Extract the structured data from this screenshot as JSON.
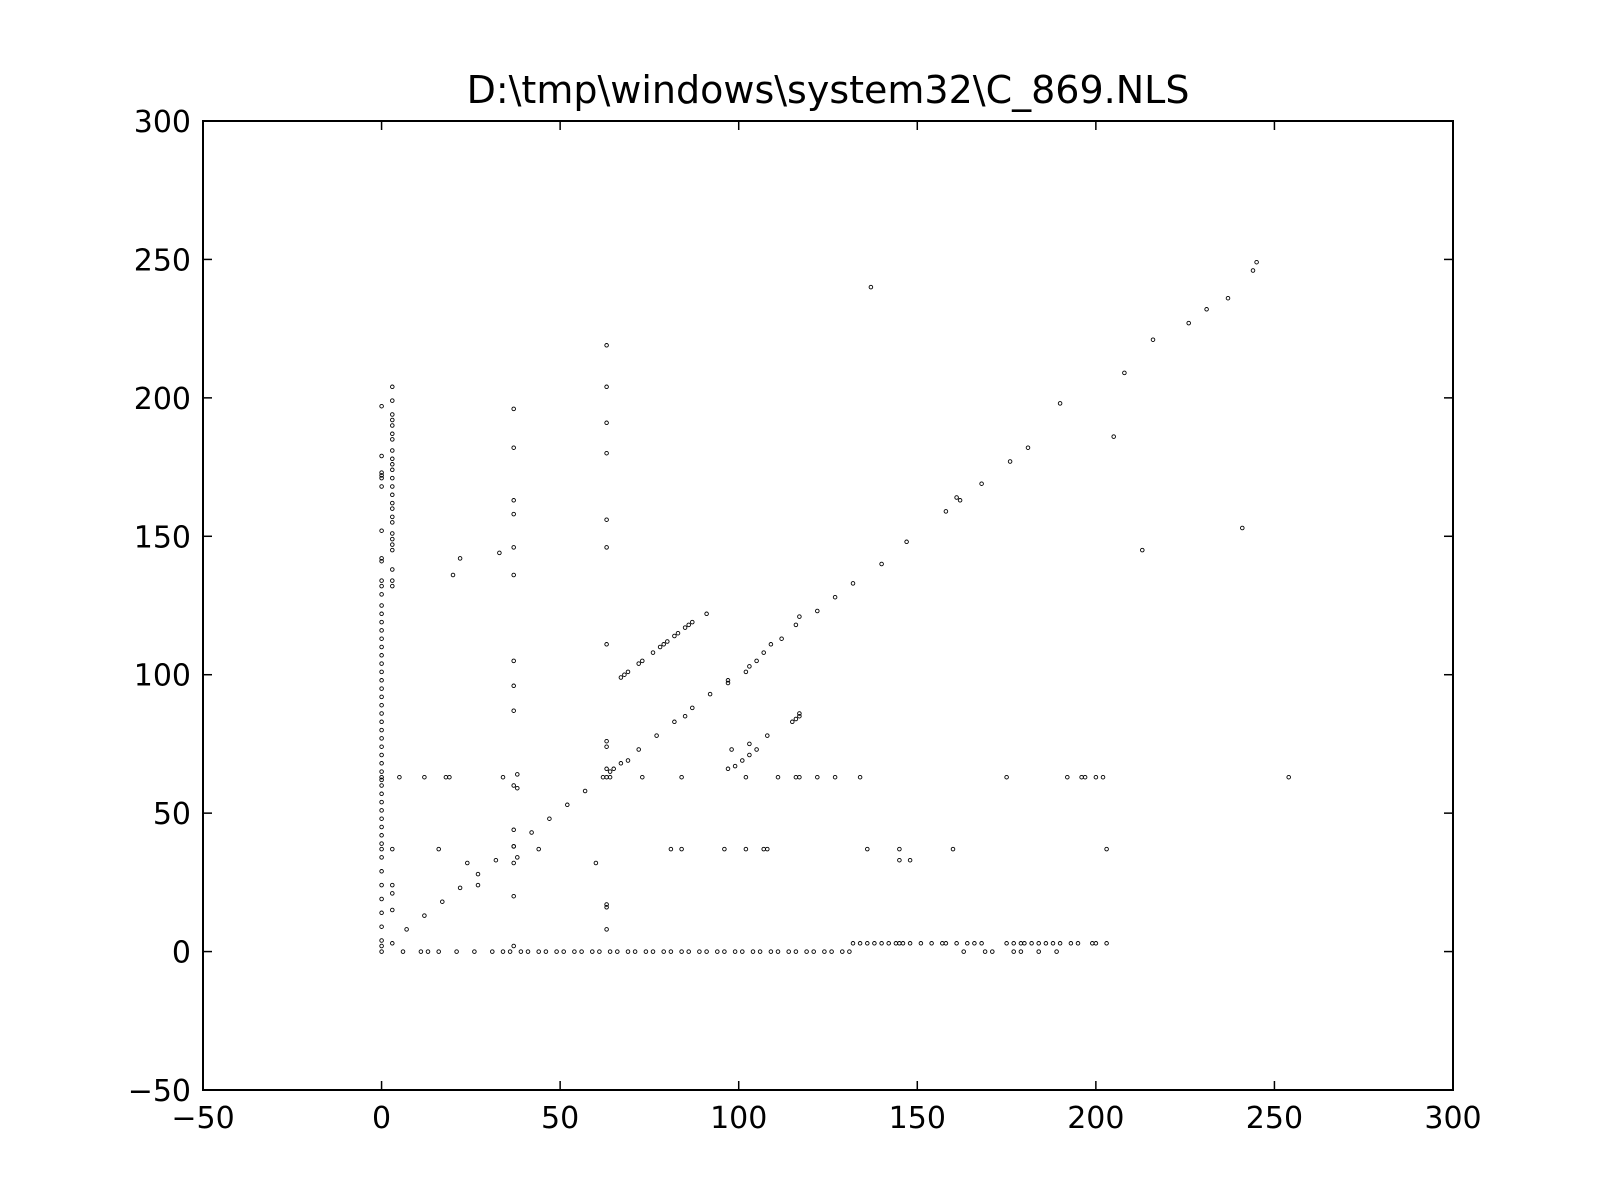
{
  "chart_data": {
    "type": "scatter",
    "title": "D:\\tmp\\windows\\system32\\C_869.NLS",
    "xlabel": "",
    "ylabel": "",
    "xlim": [
      -50,
      300
    ],
    "ylim": [
      -50,
      300
    ],
    "x_ticks": [
      "−50",
      "0",
      "50",
      "100",
      "150",
      "200",
      "250",
      "300"
    ],
    "y_ticks": [
      "−50",
      "0",
      "50",
      "100",
      "150",
      "200",
      "250",
      "300"
    ],
    "grid": false,
    "marker_color": "#000000",
    "series": [
      {
        "points": [
          [
            0,
            0
          ],
          [
            0,
            2
          ],
          [
            0,
            4
          ],
          [
            0,
            9
          ],
          [
            0,
            14
          ],
          [
            0,
            19
          ],
          [
            0,
            24
          ],
          [
            0,
            29
          ],
          [
            0,
            34
          ],
          [
            0,
            37
          ],
          [
            0,
            39
          ],
          [
            0,
            42
          ],
          [
            0,
            45
          ],
          [
            0,
            48
          ],
          [
            0,
            51
          ],
          [
            0,
            54
          ],
          [
            0,
            57
          ],
          [
            0,
            60
          ],
          [
            0,
            62
          ],
          [
            0,
            63
          ],
          [
            0,
            65
          ],
          [
            0,
            68
          ],
          [
            0,
            71
          ],
          [
            0,
            74
          ],
          [
            0,
            77
          ],
          [
            0,
            80
          ],
          [
            0,
            83
          ],
          [
            0,
            86
          ],
          [
            0,
            89
          ],
          [
            0,
            92
          ],
          [
            0,
            95
          ],
          [
            0,
            98
          ],
          [
            0,
            101
          ],
          [
            0,
            104
          ],
          [
            0,
            107
          ],
          [
            0,
            110
          ],
          [
            0,
            113
          ],
          [
            0,
            116
          ],
          [
            0,
            119
          ],
          [
            0,
            122
          ],
          [
            0,
            125
          ],
          [
            0,
            129
          ],
          [
            0,
            132
          ],
          [
            0,
            134
          ],
          [
            0,
            141
          ],
          [
            0,
            142
          ],
          [
            0,
            152
          ],
          [
            0,
            168
          ],
          [
            0,
            171
          ],
          [
            0,
            172
          ],
          [
            0,
            173
          ],
          [
            0,
            179
          ],
          [
            0,
            197
          ],
          [
            3,
            3
          ],
          [
            3,
            15
          ],
          [
            3,
            21
          ],
          [
            3,
            24
          ],
          [
            3,
            37
          ],
          [
            3,
            132
          ],
          [
            3,
            134
          ],
          [
            3,
            138
          ],
          [
            3,
            145
          ],
          [
            3,
            147
          ],
          [
            3,
            149
          ],
          [
            3,
            151
          ],
          [
            3,
            155
          ],
          [
            3,
            157
          ],
          [
            3,
            160
          ],
          [
            3,
            162
          ],
          [
            3,
            165
          ],
          [
            3,
            168
          ],
          [
            3,
            171
          ],
          [
            3,
            174
          ],
          [
            3,
            176
          ],
          [
            3,
            178
          ],
          [
            3,
            181
          ],
          [
            3,
            185
          ],
          [
            3,
            187
          ],
          [
            3,
            190
          ],
          [
            3,
            192
          ],
          [
            3,
            194
          ],
          [
            3,
            199
          ],
          [
            3,
            204
          ],
          [
            5,
            63
          ],
          [
            12,
            63
          ],
          [
            18,
            63
          ],
          [
            19,
            63
          ],
          [
            34,
            63
          ],
          [
            62,
            63
          ],
          [
            63,
            63
          ],
          [
            64,
            63
          ],
          [
            73,
            63
          ],
          [
            84,
            63
          ],
          [
            102,
            63
          ],
          [
            111,
            63
          ],
          [
            116,
            63
          ],
          [
            117,
            63
          ],
          [
            122,
            63
          ],
          [
            127,
            63
          ],
          [
            134,
            63
          ],
          [
            175,
            63
          ],
          [
            192,
            63
          ],
          [
            196,
            63
          ],
          [
            197,
            63
          ],
          [
            200,
            63
          ],
          [
            202,
            63
          ],
          [
            254,
            63
          ],
          [
            16,
            37
          ],
          [
            81,
            37
          ],
          [
            84,
            37
          ],
          [
            96,
            37
          ],
          [
            102,
            37
          ],
          [
            107,
            37
          ],
          [
            108,
            37
          ],
          [
            136,
            37
          ],
          [
            145,
            37
          ],
          [
            160,
            37
          ],
          [
            203,
            37
          ],
          [
            7,
            8
          ],
          [
            12,
            13
          ],
          [
            17,
            18
          ],
          [
            22,
            23
          ],
          [
            27,
            28
          ],
          [
            32,
            33
          ],
          [
            37,
            38
          ],
          [
            42,
            43
          ],
          [
            47,
            48
          ],
          [
            52,
            53
          ],
          [
            57,
            58
          ],
          [
            64,
            65
          ],
          [
            67,
            68
          ],
          [
            69,
            69
          ],
          [
            72,
            73
          ],
          [
            77,
            78
          ],
          [
            82,
            83
          ],
          [
            85,
            85
          ],
          [
            87,
            88
          ],
          [
            92,
            93
          ],
          [
            97,
            97
          ],
          [
            97,
            98
          ],
          [
            102,
            101
          ],
          [
            103,
            103
          ],
          [
            105,
            105
          ],
          [
            107,
            108
          ],
          [
            109,
            111
          ],
          [
            112,
            113
          ],
          [
            116,
            118
          ],
          [
            117,
            121
          ],
          [
            122,
            123
          ],
          [
            127,
            128
          ],
          [
            132,
            133
          ],
          [
            140,
            140
          ],
          [
            147,
            148
          ],
          [
            158,
            159
          ],
          [
            161,
            164
          ],
          [
            162,
            163
          ],
          [
            168,
            169
          ],
          [
            176,
            177
          ],
          [
            181,
            182
          ],
          [
            190,
            198
          ],
          [
            205,
            186
          ],
          [
            208,
            209
          ],
          [
            216,
            221
          ],
          [
            226,
            227
          ],
          [
            231,
            232
          ],
          [
            237,
            236
          ],
          [
            244,
            246
          ],
          [
            245,
            249
          ],
          [
            241,
            153
          ],
          [
            213,
            145
          ],
          [
            137,
            240
          ],
          [
            67,
            99
          ],
          [
            68,
            100
          ],
          [
            69,
            101
          ],
          [
            72,
            104
          ],
          [
            73,
            105
          ],
          [
            76,
            108
          ],
          [
            78,
            110
          ],
          [
            79,
            111
          ],
          [
            80,
            112
          ],
          [
            82,
            114
          ],
          [
            83,
            115
          ],
          [
            85,
            117
          ],
          [
            86,
            118
          ],
          [
            87,
            119
          ],
          [
            91,
            122
          ],
          [
            97,
            66
          ],
          [
            98,
            73
          ],
          [
            99,
            67
          ],
          [
            101,
            69
          ],
          [
            103,
            71
          ],
          [
            103,
            75
          ],
          [
            105,
            73
          ],
          [
            108,
            78
          ],
          [
            115,
            83
          ],
          [
            116,
            84
          ],
          [
            117,
            85
          ],
          [
            117,
            86
          ],
          [
            37,
            2
          ],
          [
            37,
            20
          ],
          [
            37,
            32
          ],
          [
            38,
            34
          ],
          [
            37,
            38
          ],
          [
            37,
            44
          ],
          [
            37,
            60
          ],
          [
            38,
            59
          ],
          [
            38,
            64
          ],
          [
            37,
            87
          ],
          [
            37,
            96
          ],
          [
            37,
            105
          ],
          [
            37,
            136
          ],
          [
            37,
            146
          ],
          [
            37,
            158
          ],
          [
            37,
            163
          ],
          [
            37,
            182
          ],
          [
            37,
            196
          ],
          [
            63,
            8
          ],
          [
            63,
            16
          ],
          [
            63,
            17
          ],
          [
            63,
            66
          ],
          [
            63,
            74
          ],
          [
            63,
            76
          ],
          [
            63,
            111
          ],
          [
            63,
            146
          ],
          [
            63,
            156
          ],
          [
            63,
            180
          ],
          [
            63,
            191
          ],
          [
            63,
            204
          ],
          [
            63,
            219
          ],
          [
            20,
            136
          ],
          [
            22,
            142
          ],
          [
            33,
            144
          ],
          [
            24,
            32
          ],
          [
            27,
            24
          ],
          [
            60,
            32
          ],
          [
            44,
            37
          ],
          [
            65,
            66
          ],
          [
            6,
            0
          ],
          [
            11,
            0
          ],
          [
            13,
            0
          ],
          [
            16,
            0
          ],
          [
            21,
            0
          ],
          [
            26,
            0
          ],
          [
            31,
            0
          ],
          [
            34,
            0
          ],
          [
            36,
            0
          ],
          [
            39,
            0
          ],
          [
            41,
            0
          ],
          [
            44,
            0
          ],
          [
            46,
            0
          ],
          [
            49,
            0
          ],
          [
            51,
            0
          ],
          [
            54,
            0
          ],
          [
            56,
            0
          ],
          [
            59,
            0
          ],
          [
            61,
            0
          ],
          [
            64,
            0
          ],
          [
            66,
            0
          ],
          [
            69,
            0
          ],
          [
            71,
            0
          ],
          [
            74,
            0
          ],
          [
            76,
            0
          ],
          [
            79,
            0
          ],
          [
            81,
            0
          ],
          [
            84,
            0
          ],
          [
            86,
            0
          ],
          [
            89,
            0
          ],
          [
            91,
            0
          ],
          [
            94,
            0
          ],
          [
            96,
            0
          ],
          [
            99,
            0
          ],
          [
            101,
            0
          ],
          [
            104,
            0
          ],
          [
            106,
            0
          ],
          [
            109,
            0
          ],
          [
            111,
            0
          ],
          [
            114,
            0
          ],
          [
            116,
            0
          ],
          [
            119,
            0
          ],
          [
            121,
            0
          ],
          [
            124,
            0
          ],
          [
            126,
            0
          ],
          [
            129,
            0
          ],
          [
            131,
            0
          ],
          [
            163,
            0
          ],
          [
            169,
            0
          ],
          [
            171,
            0
          ],
          [
            177,
            0
          ],
          [
            179,
            0
          ],
          [
            184,
            0
          ],
          [
            189,
            0
          ],
          [
            132,
            3
          ],
          [
            134,
            3
          ],
          [
            136,
            3
          ],
          [
            138,
            3
          ],
          [
            140,
            3
          ],
          [
            142,
            3
          ],
          [
            144,
            3
          ],
          [
            145,
            3
          ],
          [
            146,
            3
          ],
          [
            148,
            3
          ],
          [
            151,
            3
          ],
          [
            154,
            3
          ],
          [
            157,
            3
          ],
          [
            158,
            3
          ],
          [
            161,
            3
          ],
          [
            164,
            3
          ],
          [
            166,
            3
          ],
          [
            168,
            3
          ],
          [
            175,
            3
          ],
          [
            177,
            3
          ],
          [
            179,
            3
          ],
          [
            180,
            3
          ],
          [
            182,
            3
          ],
          [
            184,
            3
          ],
          [
            186,
            3
          ],
          [
            188,
            3
          ],
          [
            190,
            3
          ],
          [
            193,
            3
          ],
          [
            195,
            3
          ],
          [
            199,
            3
          ],
          [
            200,
            3
          ],
          [
            203,
            3
          ],
          [
            145,
            33
          ],
          [
            148,
            33
          ]
        ]
      }
    ]
  }
}
